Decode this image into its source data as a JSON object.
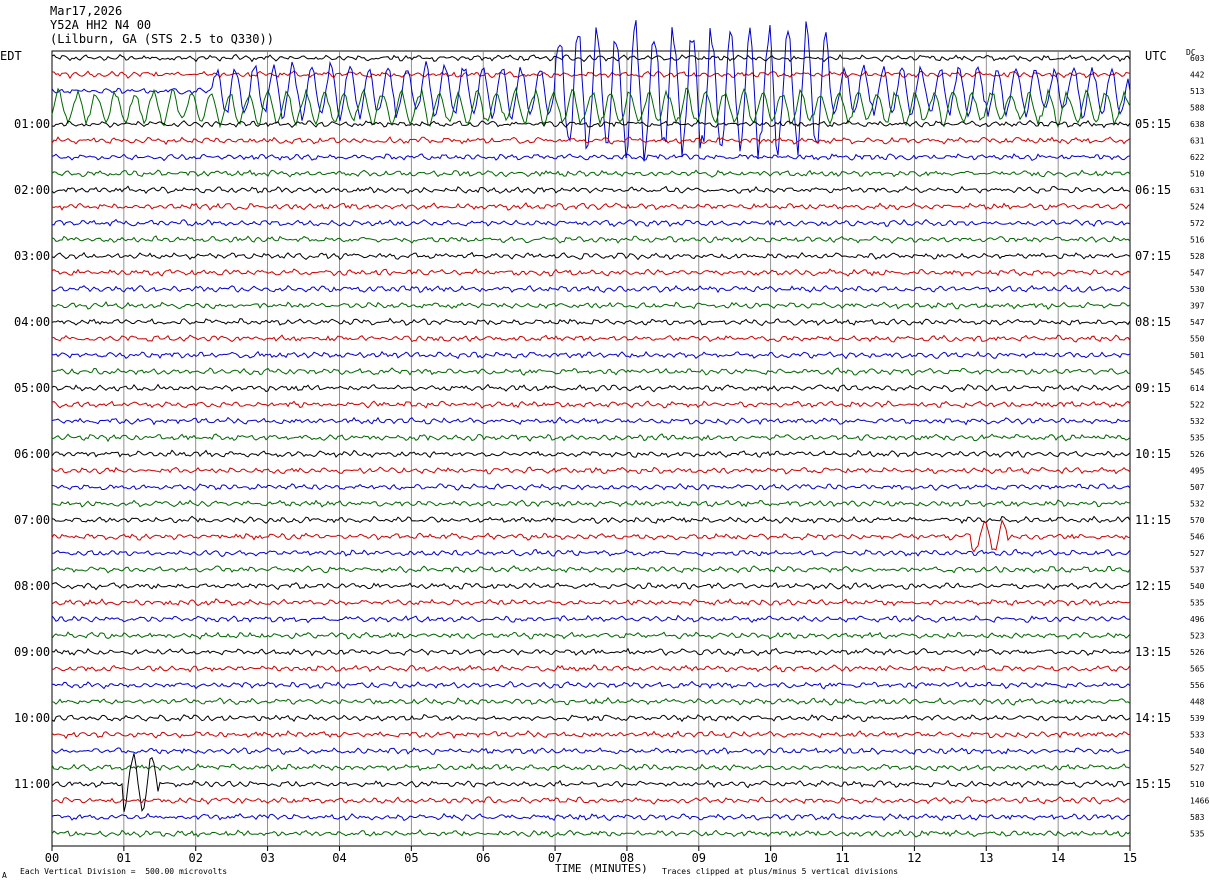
{
  "header": {
    "date": "Mar17,2026",
    "station": "Y52A HH2 N4 00",
    "location": "(Lilburn, GA (STS 2.5 to Q330))"
  },
  "left_timezone": "EDT",
  "right_timezone": "UTC",
  "dc_header": "DC",
  "footer": {
    "scale_note": "Each Vertical Division =  500.00 microvolts",
    "clip_note": "Traces clipped at plus/minus 5 vertical divisions",
    "corner_mark": "A"
  },
  "colors": {
    "cycle": [
      "#000000",
      "#cc0000",
      "#0000cc",
      "#006600"
    ]
  },
  "chart_data": {
    "type": "line",
    "title": "Mar17,2026 Y52A HH2 N4 00 (Lilburn, GA (STS 2.5 to Q330))",
    "xlabel": "TIME (MINUTES)",
    "ylabel": "",
    "xlim": [
      0,
      15
    ],
    "x_ticks": [
      "00",
      "01",
      "02",
      "03",
      "04",
      "05",
      "06",
      "07",
      "08",
      "09",
      "10",
      "11",
      "12",
      "13",
      "14",
      "15"
    ],
    "grid": "vertical lines each minute",
    "rows_per_hour": 4,
    "left_hour_labels": [
      "01:00",
      "02:00",
      "03:00",
      "04:00",
      "05:00",
      "06:00",
      "07:00",
      "08:00",
      "09:00",
      "10:00",
      "11:00"
    ],
    "right_hour_labels": [
      "05:15",
      "06:15",
      "07:15",
      "08:15",
      "09:15",
      "10:15",
      "11:15",
      "12:15",
      "13:15",
      "14:15",
      "15:15"
    ],
    "dc_offsets": [
      603,
      442,
      513,
      588,
      638,
      631,
      622,
      510,
      631,
      524,
      572,
      516,
      528,
      547,
      530,
      397,
      547,
      550,
      501,
      545,
      614,
      522,
      532,
      535,
      526,
      495,
      507,
      532,
      570,
      546,
      527,
      537,
      540,
      535,
      496,
      523,
      526,
      565,
      556,
      448,
      539,
      533,
      540,
      527,
      510,
      1466,
      583,
      535
    ],
    "scale_microvolts_per_division": 500.0,
    "clip_divisions": 5,
    "events": [
      {
        "row": 2,
        "start_min": 2.2,
        "end_min": 7.0,
        "amplitude": 2.0
      },
      {
        "row": 2,
        "start_min": 7.0,
        "end_min": 10.8,
        "amplitude": 5.0
      },
      {
        "row": 2,
        "start_min": 10.8,
        "end_min": 15.0,
        "amplitude": 1.8
      },
      {
        "row": 3,
        "start_min": 0.0,
        "end_min": 15.0,
        "amplitude": 1.2
      },
      {
        "row": 44,
        "start_min": 1.0,
        "end_min": 1.5,
        "amplitude": 2.2
      },
      {
        "row": 29,
        "start_min": 12.8,
        "end_min": 13.3,
        "amplitude": 1.2
      }
    ]
  }
}
